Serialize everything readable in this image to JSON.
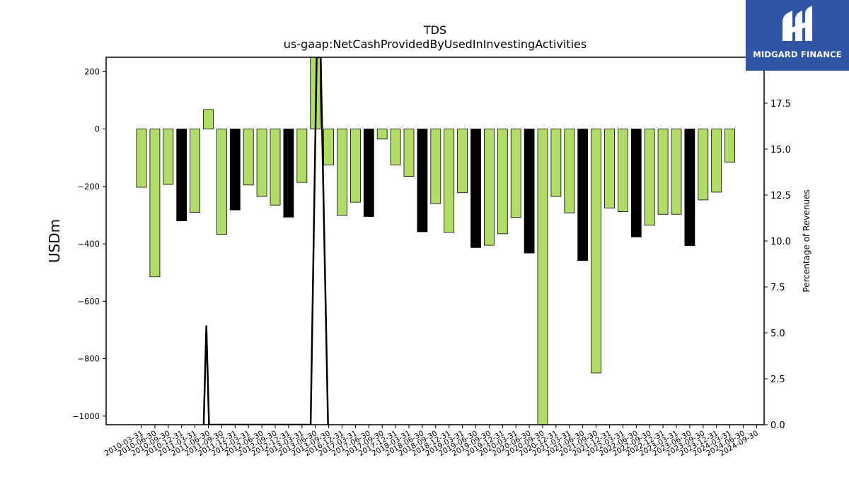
{
  "chart_data": {
    "type": "bar",
    "title": "TDS",
    "subtitle": "us-gaap:NetCashProvidedByUsedInInvestingActivities",
    "ylabel": "USDm",
    "y2label": "Percentage of Revenues",
    "ylim": [
      -1030,
      250
    ],
    "y2lim": [
      0,
      20
    ],
    "yticks": [
      200,
      0,
      -200,
      -400,
      -600,
      -800,
      -1000
    ],
    "y2ticks": [
      0.0,
      2.5,
      5.0,
      7.5,
      10.0,
      12.5,
      15.0,
      17.5
    ],
    "colors": {
      "normal": "#b2dc68",
      "q4": "#000000",
      "line": "#000000"
    },
    "categories": [
      "2010-03-31",
      "2010-06-30",
      "2010-09-30",
      "2010-12-31",
      "2011-03-31",
      "2011-06-30",
      "2011-09-30",
      "2011-12-31",
      "2012-03-31",
      "2012-06-30",
      "2012-09-30",
      "2012-12-31",
      "2013-03-31",
      "2013-06-30",
      "2013-09-30",
      "2016-12-31",
      "2017-03-31",
      "2017-06-30",
      "2017-09-30",
      "2017-12-31",
      "2018-03-31",
      "2018-06-30",
      "2018-09-30",
      "2018-12-31",
      "2019-03-31",
      "2019-06-30",
      "2019-09-30",
      "2019-12-31",
      "2020-03-31",
      "2020-06-30",
      "2020-09-30",
      "2020-12-31",
      "2021-03-31",
      "2021-06-30",
      "2021-09-30",
      "2021-12-31",
      "2022-03-31",
      "2022-06-30",
      "2022-09-30",
      "2022-12-31",
      "2023-03-31",
      "2023-06-30",
      "2023-09-30",
      "2023-12-31",
      "2024-03-31",
      "2024-06-30",
      "2024-09-30"
    ],
    "bars": [
      {
        "x": "2010-03-31",
        "value": -203
      },
      {
        "x": "2010-06-30",
        "value": -515
      },
      {
        "x": "2010-09-30",
        "value": -193
      },
      {
        "x": "2010-12-31",
        "value": -320
      },
      {
        "x": "2011-03-31",
        "value": -290
      },
      {
        "x": "2011-06-30",
        "value": 68
      },
      {
        "x": "2011-09-30",
        "value": -367
      },
      {
        "x": "2011-12-31",
        "value": -282
      },
      {
        "x": "2012-03-31",
        "value": -195
      },
      {
        "x": "2012-06-30",
        "value": -235
      },
      {
        "x": "2012-09-30",
        "value": -265
      },
      {
        "x": "2012-12-31",
        "value": -307
      },
      {
        "x": "2013-03-31",
        "value": -186
      },
      {
        "x": "2013-06-30",
        "value": 260
      },
      {
        "x": "2013-09-30",
        "value": -125
      },
      {
        "x": "2016-12-31",
        "value": -300
      },
      {
        "x": "2017-03-31",
        "value": -255
      },
      {
        "x": "2017-06-30",
        "value": -305
      },
      {
        "x": "2017-09-30",
        "value": -35
      },
      {
        "x": "2017-12-31",
        "value": -125
      },
      {
        "x": "2018-03-31",
        "value": -165
      },
      {
        "x": "2018-06-30",
        "value": -358
      },
      {
        "x": "2018-09-30",
        "value": -260
      },
      {
        "x": "2018-12-31",
        "value": -360
      },
      {
        "x": "2019-03-31",
        "value": -222
      },
      {
        "x": "2019-06-30",
        "value": -413
      },
      {
        "x": "2019-09-30",
        "value": -405
      },
      {
        "x": "2019-12-31",
        "value": -365
      },
      {
        "x": "2020-03-31",
        "value": -308
      },
      {
        "x": "2020-06-30",
        "value": -432
      },
      {
        "x": "2020-09-30",
        "value": -1035
      },
      {
        "x": "2020-12-31",
        "value": -235
      },
      {
        "x": "2021-03-31",
        "value": -292
      },
      {
        "x": "2021-06-30",
        "value": -458
      },
      {
        "x": "2021-09-30",
        "value": -850
      },
      {
        "x": "2021-12-31",
        "value": -275
      },
      {
        "x": "2022-03-31",
        "value": -288
      },
      {
        "x": "2022-06-30",
        "value": -376
      },
      {
        "x": "2022-09-30",
        "value": -335
      },
      {
        "x": "2022-12-31",
        "value": -297
      },
      {
        "x": "2023-03-31",
        "value": -297
      },
      {
        "x": "2023-06-30",
        "value": -406
      },
      {
        "x": "2023-09-30",
        "value": -247
      },
      {
        "x": "2023-12-31",
        "value": -220
      },
      {
        "x": "2024-03-31",
        "value": -115
      }
    ],
    "bar_q4_flags": [
      false,
      false,
      false,
      true,
      false,
      false,
      false,
      true,
      false,
      false,
      false,
      true,
      false,
      false,
      false,
      false,
      false,
      true,
      false,
      false,
      false,
      true,
      false,
      false,
      false,
      true,
      false,
      false,
      false,
      true,
      false,
      false,
      false,
      true,
      false,
      false,
      false,
      true,
      false,
      false,
      false,
      true,
      false,
      false,
      false
    ],
    "line_series": {
      "name": "",
      "points": [
        {
          "pos": 4.65,
          "pct": 0.0
        },
        {
          "pos": 4.85,
          "pct": 5.4
        },
        {
          "pos": 5.05,
          "pct": 0.0
        },
        {
          "pos": 12.65,
          "pct": 0.0
        },
        {
          "pos": 13.1,
          "pct": 20.0
        },
        {
          "pos": 13.4,
          "pct": 20.0
        },
        {
          "pos": 13.95,
          "pct": 0.0
        }
      ]
    }
  },
  "logo": {
    "text": "MIDGARD FINANCE"
  }
}
